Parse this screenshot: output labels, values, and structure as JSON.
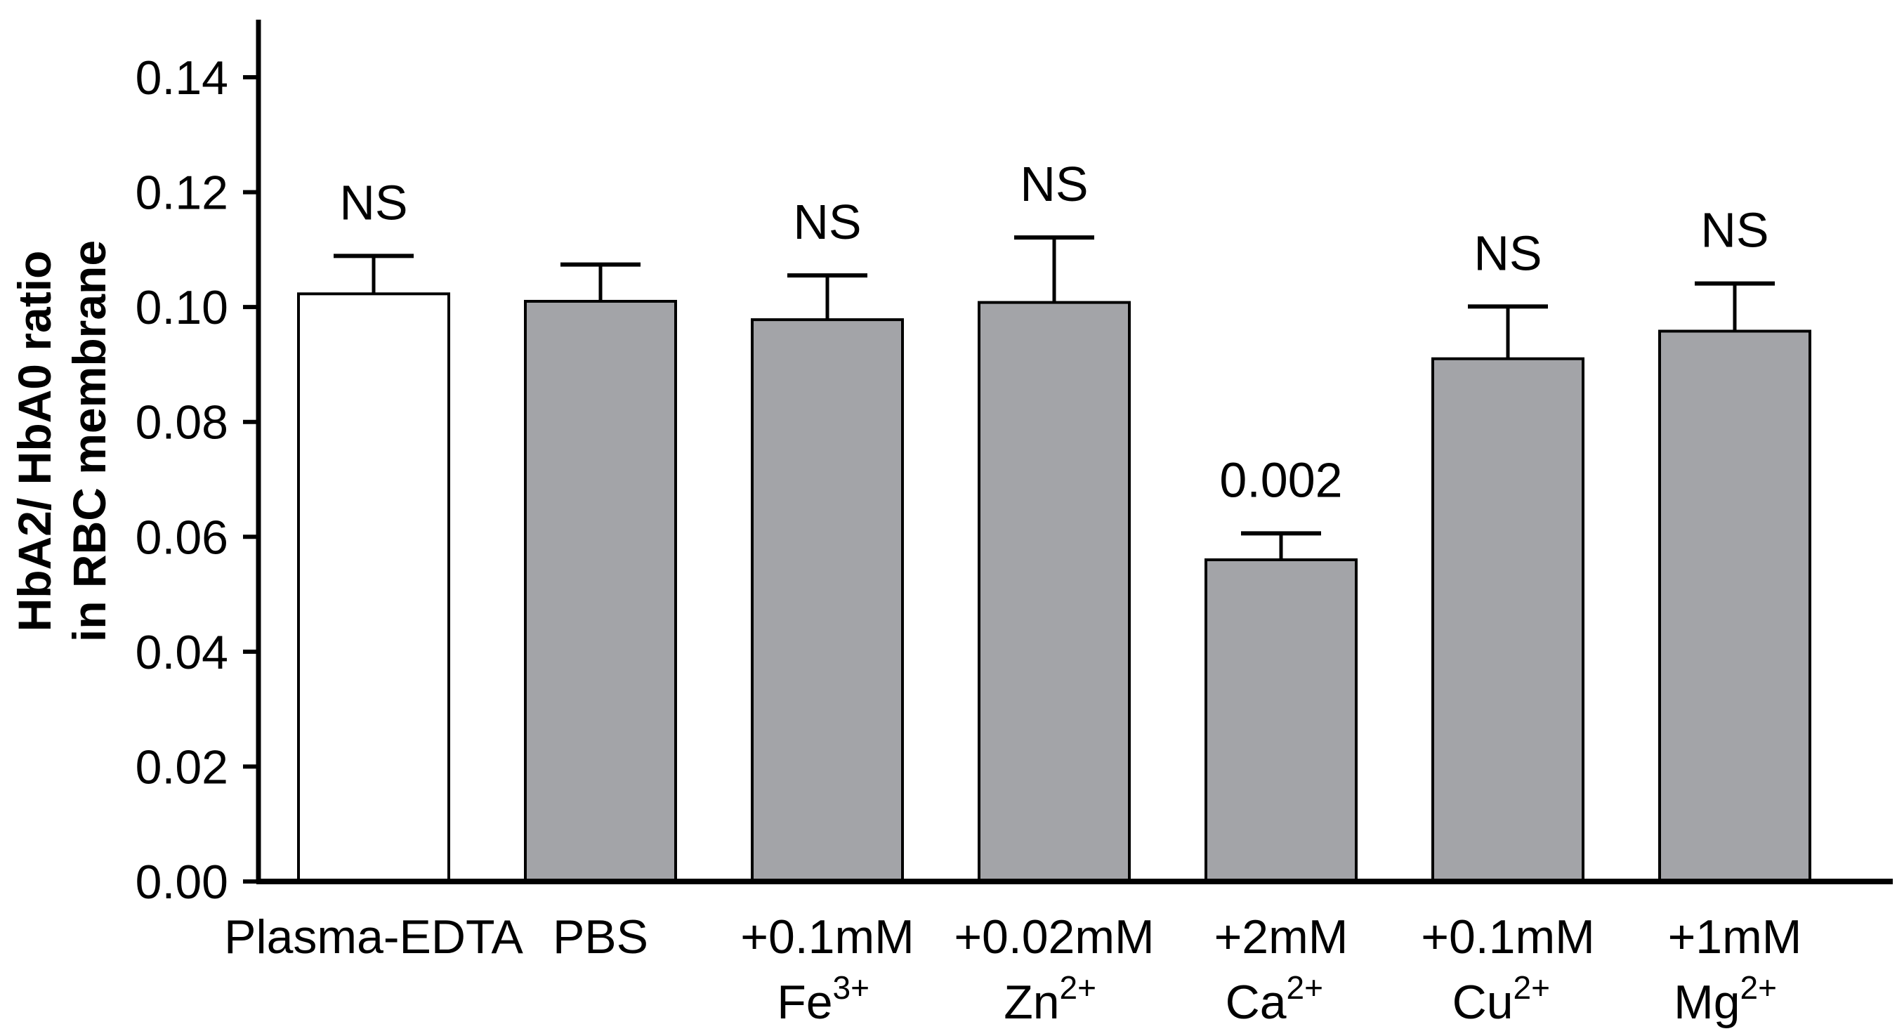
{
  "chart_data": {
    "type": "bar",
    "title": "",
    "xlabel": "",
    "ylabel_lines": [
      "HbA2/ HbA0 ratio",
      "in RBC membrane"
    ],
    "ylim": [
      0,
      0.15
    ],
    "yticks": [
      "0.00",
      "0.02",
      "0.04",
      "0.06",
      "0.08",
      "0.10",
      "0.12",
      "0.14"
    ],
    "ytick_values": [
      0,
      0.02,
      0.04,
      0.06,
      0.08,
      0.1,
      0.12,
      0.14
    ],
    "categories": [
      {
        "line1": "Plasma-EDTA",
        "ion": "",
        "charge": ""
      },
      {
        "line1": "PBS",
        "ion": "",
        "charge": ""
      },
      {
        "line1": "+0.1mM",
        "ion": "Fe",
        "charge": "3+"
      },
      {
        "line1": "+0.02mM",
        "ion": "Zn",
        "charge": "2+"
      },
      {
        "line1": "+2mM",
        "ion": "Ca",
        "charge": "2+"
      },
      {
        "line1": "+0.1mM",
        "ion": "Cu",
        "charge": "2+"
      },
      {
        "line1": "+1mM",
        "ion": "Mg",
        "charge": "2+"
      }
    ],
    "values": [
      0.1023,
      0.101,
      0.0978,
      0.1008,
      0.056,
      0.091,
      0.0958
    ],
    "errors": [
      0.0066,
      0.0064,
      0.0077,
      0.0113,
      0.0046,
      0.0091,
      0.0083
    ],
    "annotations": [
      "NS",
      "",
      "NS",
      "NS",
      "0.002",
      "NS",
      "NS"
    ],
    "bar_fills": [
      "#ffffff",
      "#a3a4a8",
      "#a3a4a8",
      "#a3a4a8",
      "#a3a4a8",
      "#a3a4a8",
      "#a3a4a8"
    ],
    "bar_stroke": "#000000",
    "axis_color": "#000000",
    "grid": false,
    "legend": "none"
  }
}
